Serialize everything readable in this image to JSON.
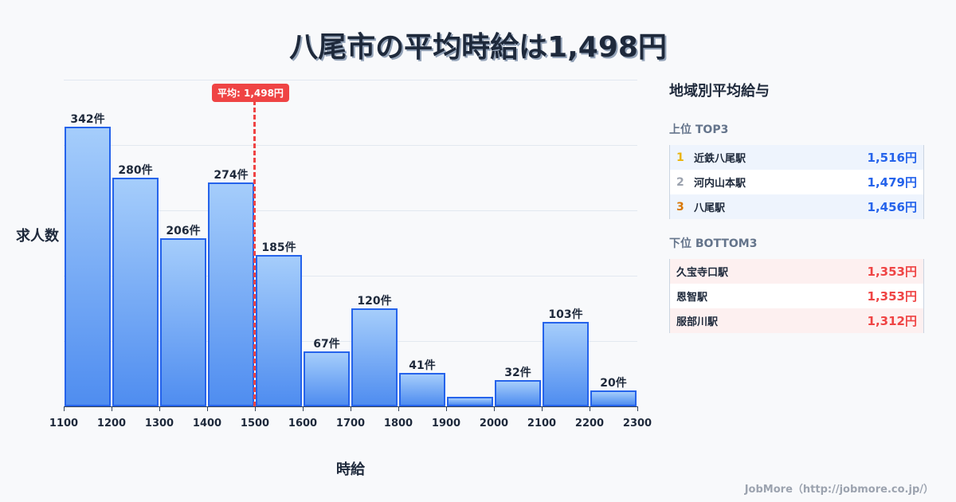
{
  "title": "八尾市の平均時給は1,498円",
  "chart_data": {
    "type": "bar",
    "title": "八尾市の平均時給は1,498円",
    "xlabel": "時給",
    "ylabel": "求人数",
    "categories": [
      "1100",
      "1200",
      "1300",
      "1400",
      "1500",
      "1600",
      "1700",
      "1800",
      "1900",
      "2000",
      "2100",
      "2200"
    ],
    "bin_edges": [
      1100,
      1200,
      1300,
      1400,
      1500,
      1600,
      1700,
      1800,
      1900,
      2000,
      2100,
      2200,
      2300
    ],
    "values": [
      342,
      280,
      206,
      274,
      185,
      67,
      120,
      41,
      12,
      32,
      103,
      20
    ],
    "labels": [
      "342件",
      "280件",
      "206件",
      "274件",
      "185件",
      "67件",
      "120件",
      "41件",
      "",
      "32件",
      "103件",
      "20件"
    ],
    "tick_labels": [
      "1100",
      "1200",
      "1300",
      "1400",
      "1500",
      "1600",
      "1700",
      "1800",
      "1900",
      "2000",
      "2100",
      "2200",
      "2300"
    ],
    "ylim": [
      0,
      400
    ],
    "grid": true,
    "average": {
      "value": 1498,
      "label": "平均: 1,498円",
      "color": "#ef4444"
    },
    "bar_color": "#2563eb"
  },
  "panel": {
    "title": "地域別平均給与",
    "top_label": "上位 TOP3",
    "top": [
      {
        "rank": "1",
        "name": "近鉄八尾駅",
        "value": "1,516円",
        "rank_color": "#eab308"
      },
      {
        "rank": "2",
        "name": "河内山本駅",
        "value": "1,479円",
        "rank_color": "#9ca3af"
      },
      {
        "rank": "3",
        "name": "八尾駅",
        "value": "1,456円",
        "rank_color": "#d97706"
      }
    ],
    "bottom_label": "下位 BOTTOM3",
    "bottom": [
      {
        "name": "久宝寺口駅",
        "value": "1,353円"
      },
      {
        "name": "恩智駅",
        "value": "1,353円"
      },
      {
        "name": "服部川駅",
        "value": "1,312円"
      }
    ]
  },
  "footer": "JobMore（http://jobmore.co.jp/）"
}
